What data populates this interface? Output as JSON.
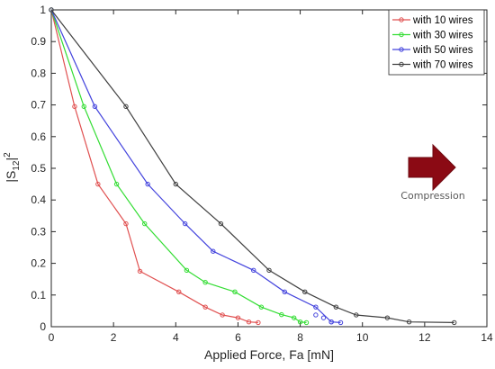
{
  "chart_data": {
    "type": "line",
    "xlabel": "Applied Force, Fa [mN]",
    "ylabel_base": "|S",
    "ylabel_sub": "12",
    "ylabel_bar": "|",
    "ylabel_sup": "2",
    "xlim": [
      0,
      14
    ],
    "ylim": [
      0,
      1
    ],
    "xticks": [
      0,
      2,
      4,
      6,
      8,
      10,
      12,
      14
    ],
    "yticks": [
      0,
      0.1,
      0.2,
      0.3,
      0.4,
      0.5,
      0.6,
      0.7,
      0.8,
      0.9,
      1
    ],
    "grid": false,
    "legend_position": "top-right",
    "series": [
      {
        "name": "with 10 wires",
        "color": "#e05050",
        "x": [
          0,
          0.75,
          1.5,
          2.4,
          2.85,
          4.1,
          4.95,
          5.5,
          6.0,
          6.35,
          6.65
        ],
        "y": [
          1,
          0.695,
          0.45,
          0.325,
          0.175,
          0.11,
          0.062,
          0.037,
          0.028,
          0.015,
          0.013
        ]
      },
      {
        "name": "with 30 wires",
        "color": "#33dd33",
        "x": [
          0,
          1.05,
          2.1,
          3.0,
          4.35,
          4.95,
          5.9,
          6.75,
          7.4,
          7.8,
          8.0,
          8.2
        ],
        "y": [
          1,
          0.695,
          0.45,
          0.325,
          0.178,
          0.14,
          0.11,
          0.062,
          0.038,
          0.028,
          0.015,
          0.013
        ]
      },
      {
        "name": "with 50 wires",
        "color": "#4444dd",
        "x": [
          0,
          1.4,
          3.1,
          4.3,
          5.2,
          6.5,
          7.5,
          8.5,
          9.0,
          9.3
        ],
        "y": [
          1,
          0.695,
          0.45,
          0.325,
          0.238,
          0.178,
          0.11,
          0.062,
          0.015,
          0.013
        ],
        "x_extra": [
          8.5,
          8.75,
          9.0
        ],
        "y_extra": [
          0.037,
          0.028,
          0.015
        ]
      },
      {
        "name": "with 70 wires",
        "color": "#404040",
        "x": [
          0,
          2.4,
          4.0,
          5.45,
          7.0,
          8.15,
          9.15,
          9.8,
          10.8,
          11.5,
          12.95
        ],
        "y": [
          1,
          0.695,
          0.45,
          0.325,
          0.178,
          0.11,
          0.062,
          0.037,
          0.028,
          0.015,
          0.013
        ]
      }
    ],
    "annotations": [
      {
        "text": "Compression",
        "color": "#8b0a14",
        "icon": "right-arrow-icon"
      }
    ]
  }
}
